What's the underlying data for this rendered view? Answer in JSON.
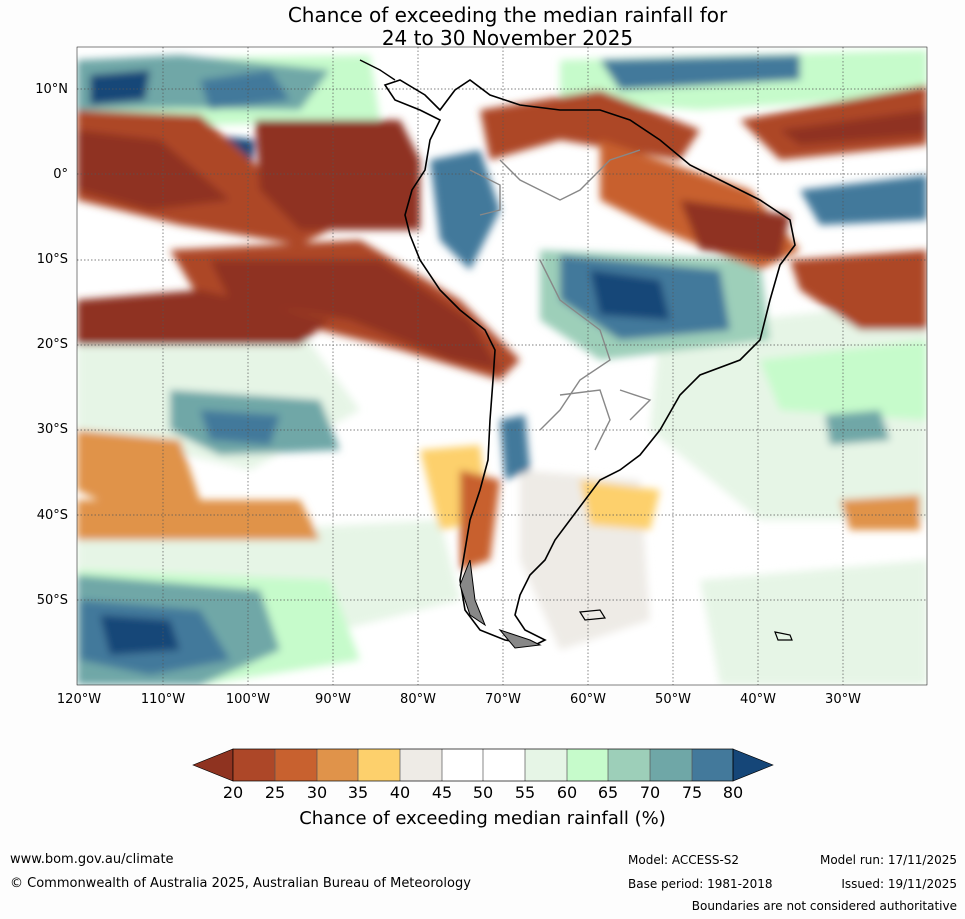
{
  "title": {
    "line1": "Chance of exceeding the median rainfall for",
    "line2": "24 to 30 November 2025"
  },
  "map": {
    "lat_labels": [
      "10°N",
      "0°",
      "10°S",
      "20°S",
      "30°S",
      "40°S",
      "50°S"
    ],
    "lon_labels": [
      "120°W",
      "110°W",
      "100°W",
      "90°W",
      "80°W",
      "70°W",
      "60°W",
      "50°W",
      "40°W",
      "30°W"
    ]
  },
  "colorbar": {
    "ticks": [
      "20",
      "25",
      "30",
      "35",
      "40",
      "45",
      "50",
      "55",
      "60",
      "65",
      "70",
      "75",
      "80"
    ],
    "colors": [
      "#ad4728",
      "#c8612f",
      "#e0934a",
      "#fdd06c",
      "#eeebe6",
      "#ffffff",
      "#ffffff",
      "#e6f5e6",
      "#c6fbcb",
      "#9dcfb9",
      "#6fa7a7",
      "#43799b"
    ],
    "under_color": "#8f3320",
    "over_color": "#154678",
    "label": "Chance of exceeding median rainfall (%)"
  },
  "footer": {
    "website": "www.bom.gov.au/climate",
    "copyright": "© Commonwealth of Australia 2025, Australian Bureau of Meteorology",
    "model": "Model: ACCESS-S2",
    "base_period": "Base period: 1981-2018",
    "model_run": "Model run: 17/11/2025",
    "issued": "Issued: 19/11/2025",
    "disclaimer": "Boundaries are not considered authoritative"
  }
}
